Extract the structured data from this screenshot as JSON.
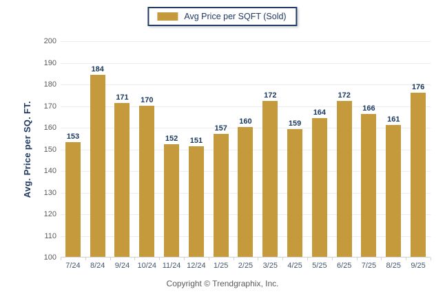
{
  "chart_data": {
    "type": "bar",
    "legend": "Avg Price per SQFT (Sold)",
    "legend_position": "top-center",
    "categories": [
      "7/24",
      "8/24",
      "9/24",
      "10/24",
      "11/24",
      "12/24",
      "1/25",
      "2/25",
      "3/25",
      "4/25",
      "5/25",
      "6/25",
      "7/25",
      "8/25",
      "9/25"
    ],
    "values": [
      153,
      184,
      171,
      170,
      152,
      151,
      157,
      160,
      172,
      159,
      164,
      172,
      166,
      161,
      176
    ],
    "xlabel": "",
    "ylabel": "Avg. Price per SQ. FT.",
    "ylim": [
      100,
      200
    ],
    "ytick": 10,
    "grid": true
  },
  "colors": {
    "gold": "#c49a3c",
    "navy": "#1f3864",
    "grid": "#ececec",
    "axis": "#d0d0d0",
    "ticklabel": "#595959",
    "xlabel": "#44546a",
    "valuelabel": "#17375d",
    "footer": "#595959"
  },
  "footer": {
    "copyright": "Copyright © Trendgraphix, Inc."
  }
}
